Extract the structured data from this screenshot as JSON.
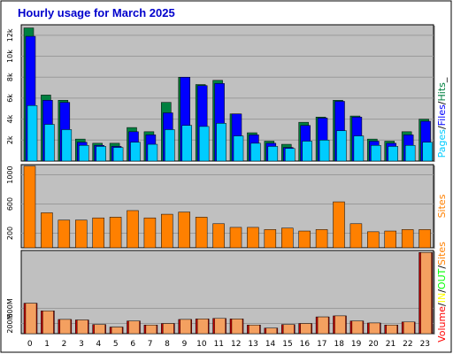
{
  "colors": {
    "background": "#C0C0C0",
    "pages": "#00ccff",
    "files": "#0000ff",
    "hits": "#008040",
    "sites": "#ff8000",
    "volume": "#ff0000",
    "in": "#ffff00",
    "out": "#00ff00"
  },
  "chart_data": {
    "title": "Hourly usage for March 2025",
    "hours": [
      "0",
      "1",
      "2",
      "3",
      "4",
      "5",
      "6",
      "7",
      "8",
      "9",
      "10",
      "11",
      "12",
      "13",
      "14",
      "15",
      "16",
      "17",
      "18",
      "19",
      "20",
      "21",
      "22",
      "23"
    ],
    "panels": [
      {
        "type": "bar",
        "ylim": [
          0,
          13000
        ],
        "ytick_labels": [
          "2k",
          "4k",
          "6k",
          "8k",
          "10k",
          "12k"
        ],
        "ytick_values": [
          2000,
          4000,
          6000,
          8000,
          10000,
          12000
        ],
        "legend": [
          "Pages",
          "/",
          "Files",
          "/",
          "Hits",
          "_"
        ],
        "series": [
          {
            "name": "Hits",
            "values": [
              12700,
              6300,
              5800,
              2100,
              1700,
              1700,
              3200,
              2800,
              5600,
              8000,
              7300,
              7700,
              4500,
              2700,
              1900,
              1600,
              3700,
              4200,
              5800,
              4300,
              2100,
              1900,
              2800,
              4000
            ]
          },
          {
            "name": "Files",
            "values": [
              11900,
              5800,
              5600,
              1800,
              1500,
              1400,
              2800,
              2500,
              4600,
              8000,
              7200,
              7400,
              4500,
              2500,
              1700,
              1300,
              3400,
              4100,
              5700,
              4200,
              1900,
              1700,
              2500,
              3800
            ]
          },
          {
            "name": "Pages",
            "values": [
              5300,
              3500,
              3000,
              1500,
              1400,
              1300,
              1800,
              1600,
              3000,
              3400,
              3300,
              3600,
              2400,
              1700,
              1400,
              1200,
              1900,
              2000,
              2900,
              2400,
              1500,
              1400,
              1500,
              1800
            ]
          }
        ]
      },
      {
        "type": "bar",
        "ylim": [
          0,
          1140
        ],
        "ytick_labels": [
          "200",
          "600",
          "1000"
        ],
        "ytick_values": [
          200,
          600,
          1000
        ],
        "legend": [
          "Sites"
        ],
        "series": [
          {
            "name": "Sites",
            "values": [
              1120,
              480,
              380,
              380,
              410,
              420,
              510,
              410,
              460,
              490,
              420,
              330,
              280,
              280,
              250,
              270,
              230,
              250,
              630,
              330,
              220,
              230,
              250,
              250
            ]
          }
        ]
      },
      {
        "type": "bar",
        "ylim": [
          0,
          1640
        ],
        "ytick_labels": [
          "200M",
          "500M"
        ],
        "ytick_values": [
          200,
          500
        ],
        "legend": [
          "Volume",
          "/",
          "IN",
          "/",
          "OUT",
          "/",
          "Sites"
        ],
        "series": [
          {
            "name": "Volume",
            "values": [
              600,
              450,
              280,
              270,
              180,
              130,
              250,
              170,
              200,
              280,
              290,
              300,
              290,
              170,
              110,
              180,
              200,
              330,
              350,
              250,
              210,
              170,
              230,
              1600
            ]
          },
          {
            "name": "IN",
            "values": [
              600,
              450,
              280,
              270,
              180,
              130,
              250,
              170,
              200,
              280,
              290,
              300,
              290,
              170,
              110,
              180,
              200,
              330,
              350,
              250,
              210,
              170,
              230,
              1600
            ]
          }
        ]
      }
    ]
  }
}
